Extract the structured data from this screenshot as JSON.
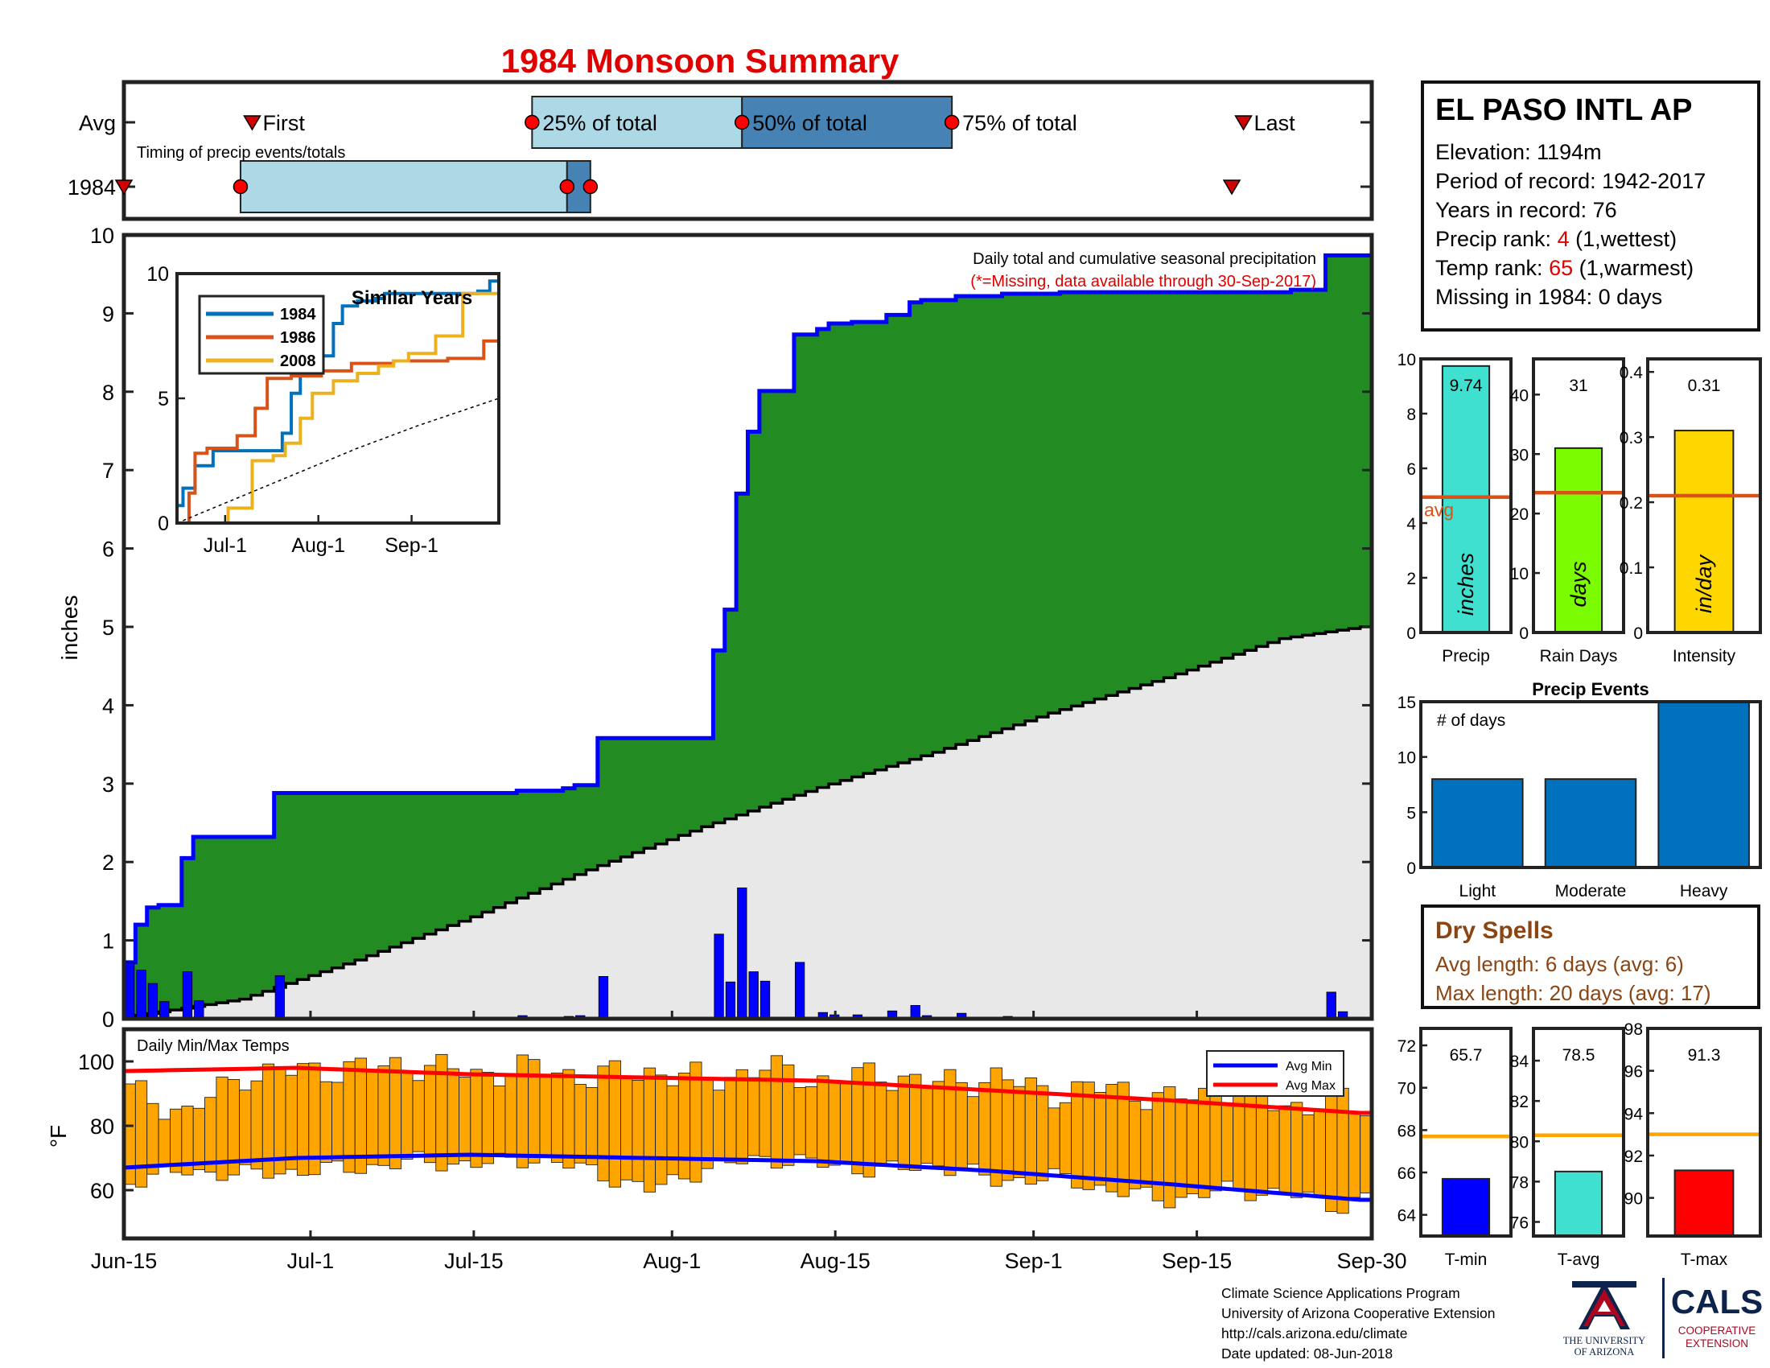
{
  "title": "1984 Monsoon Summary",
  "timing_panel": {
    "caption": "Timing of precip events/totals",
    "rows": [
      "Avg",
      "1984"
    ],
    "labels": {
      "first": "First",
      "p25": "25% of total",
      "p50": "50% of total",
      "p75": "75% of total",
      "last": "Last"
    },
    "avg_doy": {
      "first": 11,
      "p25": 35,
      "p50": 53,
      "p75": 71,
      "last": 96
    },
    "y1984_doy": {
      "first": 0,
      "p25": 10,
      "p50": 38,
      "p75": 40,
      "last": 95
    }
  },
  "station": {
    "name": "EL PASO INTL AP",
    "elevation": "Elevation: 1194m",
    "period": "Period of record: 1942-2017",
    "years": "Years in record: 76",
    "precip_rank_label": "Precip rank: ",
    "precip_rank": "4",
    "precip_rank_note": " (1,wettest)",
    "temp_rank_label": "Temp rank: ",
    "temp_rank": "65",
    "temp_rank_note": " (1,warmest)",
    "missing": "Missing in 1984: 0 days"
  },
  "main_chart": {
    "annotation": "Daily total and cumulative seasonal precipitation",
    "missing_note": "(*=Missing, data available through 30-Sep-2017)",
    "ylabel": "inches",
    "ylim": [
      0,
      10
    ],
    "yticks": [
      0,
      1,
      2,
      3,
      4,
      5,
      6,
      7,
      8,
      9,
      10
    ],
    "x_labels": [
      "Jun-15",
      "Jul-1",
      "Jul-15",
      "Aug-1",
      "Aug-15",
      "Sep-1",
      "Sep-15",
      "Sep-30"
    ],
    "x_label_doy": [
      0,
      16,
      30,
      47,
      61,
      78,
      92,
      107
    ]
  },
  "chart_data": [
    {
      "type": "bar",
      "name": "daily_precip_1984",
      "x_unit": "day since Jun-15",
      "x": [
        0,
        1,
        2,
        3,
        5,
        6,
        13,
        34,
        38,
        39,
        41,
        51,
        52,
        53,
        54,
        55,
        58,
        60,
        61,
        63,
        66,
        68,
        69,
        72,
        76,
        81,
        101,
        104,
        105,
        107
      ],
      "values": [
        0.72,
        0.62,
        0.45,
        0.22,
        0.6,
        0.23,
        0.55,
        0.04,
        0.03,
        0.04,
        0.54,
        1.08,
        0.47,
        1.67,
        0.6,
        0.48,
        0.72,
        0.08,
        0.05,
        0.05,
        0.1,
        0.17,
        0.04,
        0.07,
        0.03,
        0.02,
        0.02,
        0.34,
        0.09,
        0.02
      ]
    },
    {
      "type": "area",
      "name": "cumulative_1984",
      "x": [
        0,
        1,
        2,
        3,
        5,
        6,
        13,
        34,
        38,
        39,
        41,
        51,
        52,
        53,
        54,
        55,
        58,
        60,
        61,
        63,
        66,
        68,
        69,
        72,
        76,
        81,
        101,
        104,
        105,
        107
      ],
      "values": [
        0.72,
        1.2,
        1.42,
        1.45,
        2.05,
        2.32,
        2.88,
        2.91,
        2.94,
        2.98,
        3.58,
        4.7,
        5.22,
        6.7,
        7.49,
        8.01,
        8.73,
        8.8,
        8.87,
        8.89,
        8.98,
        9.14,
        9.17,
        9.22,
        9.25,
        9.27,
        9.3,
        9.74,
        9.74,
        9.74
      ]
    },
    {
      "type": "line",
      "name": "avg_cumulative",
      "x": [
        0,
        10,
        20,
        30,
        40,
        50,
        60,
        70,
        80,
        90,
        100,
        107
      ],
      "values": [
        0.02,
        0.25,
        0.75,
        1.3,
        1.9,
        2.45,
        2.95,
        3.4,
        3.9,
        4.35,
        4.85,
        5.0
      ]
    },
    {
      "type": "line",
      "title": "Similar Years",
      "x_labels": [
        "Jul-1",
        "Aug-1",
        "Sep-1"
      ],
      "x_label_doy": [
        16,
        47,
        78
      ],
      "ylim": [
        0,
        10
      ],
      "yticks": [
        0,
        5,
        10
      ],
      "series": [
        {
          "name": "1984",
          "color": "#0072bd",
          "x": [
            0,
            2,
            6,
            12,
            30,
            35,
            38,
            41,
            52,
            55,
            60,
            66,
            69,
            100,
            104,
            107
          ],
          "values": [
            0.7,
            1.4,
            2.3,
            2.9,
            2.9,
            3.6,
            5.2,
            6.7,
            8.0,
            8.7,
            8.9,
            9.0,
            9.2,
            9.3,
            9.7,
            9.7
          ]
        },
        {
          "name": "1986",
          "color": "#d95319",
          "x": [
            0,
            4,
            6,
            10,
            20,
            26,
            30,
            38,
            48,
            58,
            72,
            90,
            102,
            107
          ],
          "values": [
            0,
            1.2,
            2.8,
            3.0,
            3.5,
            4.6,
            5.8,
            5.9,
            6.1,
            6.4,
            6.5,
            6.6,
            7.3,
            7.3
          ]
        },
        {
          "name": "2008",
          "color": "#edb120",
          "x": [
            0,
            14,
            17,
            25,
            32,
            36,
            41,
            45,
            52,
            60,
            67,
            72,
            77,
            86,
            95,
            107
          ],
          "values": [
            0,
            0,
            0.6,
            2.5,
            2.7,
            3.2,
            4.2,
            5.2,
            5.7,
            6.0,
            6.3,
            6.5,
            6.8,
            7.5,
            9.2,
            9.2
          ]
        },
        {
          "name": "",
          "color": "#000000",
          "x": [
            0,
            20,
            40,
            60,
            80,
            107
          ],
          "values": [
            0,
            1.0,
            2.0,
            3.0,
            3.9,
            5.0
          ]
        }
      ]
    },
    {
      "type": "bar",
      "title": "Daily Min/Max Temps",
      "ylabel": "°F",
      "ylim": [
        45,
        110
      ],
      "yticks": [
        60,
        80,
        100
      ],
      "legend": [
        "Avg Min",
        "Avg Max"
      ],
      "legend_position": "top-right",
      "temp_anchors": {
        "x": [
          0,
          5,
          10,
          15,
          20,
          25,
          30,
          35,
          40,
          45,
          50,
          55,
          60,
          65,
          70,
          75,
          80,
          85,
          90,
          95,
          100,
          105,
          107
        ],
        "tmax": [
          91,
          84,
          96,
          97,
          98,
          99,
          96,
          98,
          95,
          97,
          94,
          98,
          94,
          96,
          93,
          95,
          90,
          92,
          88,
          91,
          86,
          88,
          85
        ],
        "tmin": [
          63,
          66,
          65,
          66,
          67,
          69,
          68,
          70,
          66,
          60,
          67,
          70,
          68,
          66,
          68,
          63,
          64,
          60,
          57,
          60,
          59,
          55,
          58
        ]
      },
      "avg_min": {
        "x": [
          0,
          15,
          30,
          45,
          60,
          75,
          90,
          107
        ],
        "values": [
          67,
          70,
          71,
          70,
          69,
          66,
          62,
          57
        ]
      },
      "avg_max": {
        "x": [
          0,
          15,
          30,
          45,
          60,
          75,
          90,
          107
        ],
        "values": [
          97,
          98,
          96,
          95,
          94,
          91,
          88,
          84
        ]
      }
    },
    {
      "type": "bar",
      "panel": "precip",
      "categories": [
        "Precip"
      ],
      "values": [
        9.74
      ],
      "value_label": "9.74",
      "avg": 4.95,
      "avg_label": "avg",
      "unit_label": "inches",
      "ylim": [
        0,
        10
      ],
      "yticks": [
        0,
        2,
        4,
        6,
        8,
        10
      ],
      "color": "#40e0d0"
    },
    {
      "type": "bar",
      "panel": "rain_days",
      "categories": [
        "Rain Days"
      ],
      "values": [
        31
      ],
      "value_label": "31",
      "avg": 23.5,
      "unit_label": "days",
      "ylim": [
        0,
        46
      ],
      "yticks": [
        0,
        10,
        20,
        30,
        40
      ],
      "color": "#7cfc00"
    },
    {
      "type": "bar",
      "panel": "intensity",
      "categories": [
        "Intensity"
      ],
      "values": [
        0.31
      ],
      "value_label": "0.31",
      "avg": 0.21,
      "unit_label": "in/day",
      "ylim": [
        0,
        0.42
      ],
      "yticks": [
        0,
        0.1,
        0.2,
        0.3,
        0.4
      ],
      "color": "#ffd700"
    },
    {
      "type": "bar",
      "title": "Precip Events",
      "annotation": "# of days",
      "categories": [
        "Light",
        "Moderate",
        "Heavy"
      ],
      "values": [
        8,
        8,
        15
      ],
      "ylim": [
        0,
        15
      ],
      "yticks": [
        0,
        5,
        10,
        15
      ],
      "color": "#0072bd"
    },
    {
      "type": "bar",
      "panel": "t_min",
      "categories": [
        "T-min"
      ],
      "values": [
        65.7
      ],
      "value_label": "65.7",
      "avg": 67.7,
      "ylim": [
        63,
        72.8
      ],
      "yticks": [
        64,
        66,
        68,
        70,
        72
      ],
      "color": "#0000ff"
    },
    {
      "type": "bar",
      "panel": "t_avg",
      "categories": [
        "T-avg"
      ],
      "values": [
        78.5
      ],
      "value_label": "78.5",
      "avg": 80.3,
      "ylim": [
        75.3,
        85.6
      ],
      "yticks": [
        76,
        78,
        80,
        82,
        84
      ],
      "color": "#40e0d0"
    },
    {
      "type": "bar",
      "panel": "t_max",
      "categories": [
        "T-max"
      ],
      "values": [
        91.3
      ],
      "value_label": "91.3",
      "avg": 93.0,
      "ylim": [
        88.2,
        98
      ],
      "yticks": [
        90,
        92,
        94,
        96,
        98
      ],
      "color": "#ff0000"
    }
  ],
  "dry_spells": {
    "title": "Dry Spells",
    "avg": "Avg length: 6 days (avg: 6)",
    "max": "Max length: 20 days (avg: 17)"
  },
  "footer": {
    "line1": "Climate Science Applications Program",
    "line2": "University of Arizona Cooperative Extension",
    "line3": "http://cals.arizona.edu/climate",
    "line4": " Date updated: 08-Jun-2018"
  },
  "logos": {
    "ua_line1": "THE UNIVERSITY",
    "ua_line2": "OF ARIZONA",
    "cals": "CALS",
    "cals_line1": "COOPERATIVE",
    "cals_line2": "EXTENSION"
  }
}
